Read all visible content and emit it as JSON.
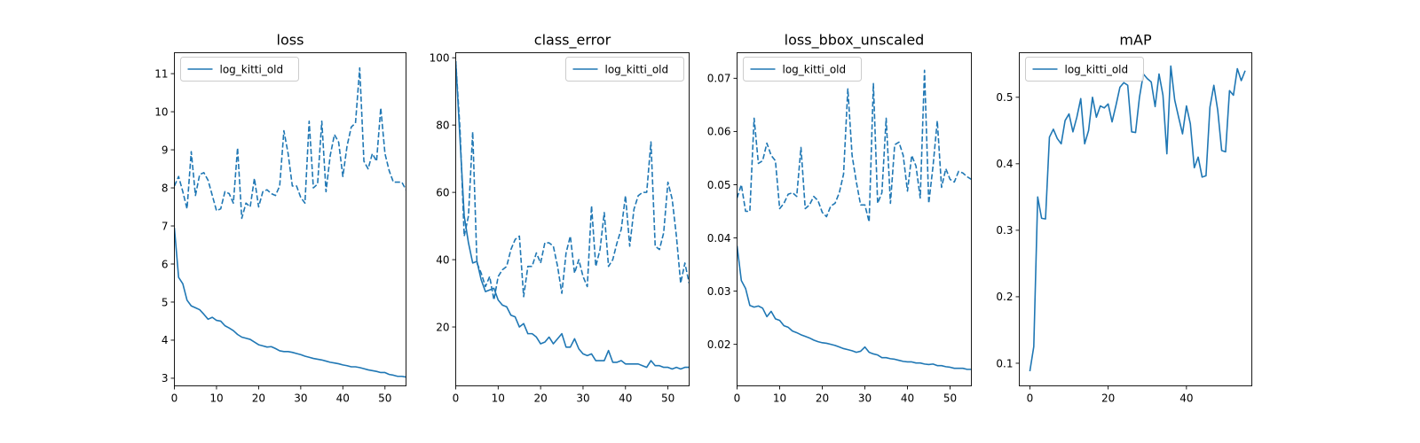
{
  "colors": {
    "series": "#1f77b4",
    "axis": "#000000",
    "legend_border": "#cccccc"
  },
  "chart_data": [
    {
      "type": "line",
      "title": "loss",
      "xlim": [
        0,
        55
      ],
      "ylim": [
        2.8,
        11.55
      ],
      "xticks": [
        0,
        10,
        20,
        30,
        40,
        50
      ],
      "yticks": [
        3,
        4,
        5,
        6,
        7,
        8,
        9,
        10,
        11
      ],
      "legend": {
        "entries": [
          "log_kitti_old"
        ],
        "position": "upper-left"
      },
      "series": [
        {
          "name": "log_kitti_old",
          "style": "solid",
          "x_start": 0,
          "x_step": 1,
          "values": [
            6.95,
            5.65,
            5.48,
            5.05,
            4.9,
            4.85,
            4.8,
            4.68,
            4.55,
            4.6,
            4.52,
            4.5,
            4.38,
            4.32,
            4.25,
            4.15,
            4.08,
            4.05,
            4.02,
            3.95,
            3.88,
            3.85,
            3.82,
            3.83,
            3.78,
            3.72,
            3.7,
            3.7,
            3.68,
            3.65,
            3.62,
            3.58,
            3.55,
            3.52,
            3.5,
            3.48,
            3.45,
            3.42,
            3.4,
            3.38,
            3.35,
            3.33,
            3.3,
            3.3,
            3.28,
            3.25,
            3.22,
            3.2,
            3.18,
            3.15,
            3.15,
            3.1,
            3.08,
            3.05,
            3.05,
            3.03
          ]
        },
        {
          "name": "",
          "style": "dashed",
          "x_start": 0,
          "x_step": 1,
          "values": [
            8.05,
            8.3,
            7.9,
            7.45,
            8.95,
            7.8,
            8.35,
            8.4,
            8.2,
            7.8,
            7.4,
            7.45,
            7.9,
            7.85,
            7.6,
            9.05,
            7.2,
            7.6,
            7.5,
            8.25,
            7.5,
            7.9,
            7.95,
            7.85,
            7.8,
            8.05,
            9.5,
            8.9,
            8.05,
            8.05,
            7.75,
            7.6,
            9.75,
            8.0,
            8.1,
            9.75,
            7.9,
            8.85,
            9.4,
            9.2,
            8.3,
            9.1,
            9.6,
            9.7,
            11.15,
            8.7,
            8.5,
            8.9,
            8.7,
            10.1,
            8.9,
            8.45,
            8.15,
            8.15,
            8.15,
            7.95
          ]
        }
      ]
    },
    {
      "type": "line",
      "title": "class_error",
      "xlim": [
        0,
        55
      ],
      "ylim": [
        2.5,
        101.5
      ],
      "xticks": [
        0,
        10,
        20,
        30,
        40,
        50
      ],
      "yticks": [
        20,
        40,
        60,
        80,
        100
      ],
      "legend": {
        "entries": [
          "log_kitti_old"
        ],
        "position": "upper-right"
      },
      "series": [
        {
          "name": "log_kitti_old",
          "style": "solid",
          "x_start": 0,
          "x_step": 1,
          "values": [
            99,
            76,
            53,
            45,
            39,
            39.5,
            34,
            30.5,
            31,
            31.5,
            28,
            26.5,
            26,
            23.5,
            23,
            20,
            21,
            18,
            18,
            17,
            15,
            15.5,
            17,
            15,
            16.5,
            18,
            14,
            14,
            16.5,
            13.5,
            12,
            11.5,
            12,
            10,
            10,
            10,
            13,
            9.5,
            9.5,
            10,
            9,
            9,
            9,
            9,
            8.5,
            8,
            10,
            8.5,
            8.5,
            8,
            8,
            7.5,
            8,
            7.5,
            8,
            8
          ]
        },
        {
          "name": "",
          "style": "dashed",
          "x_start": 0,
          "x_step": 1,
          "values": [
            99,
            79,
            47,
            53,
            78,
            39,
            36,
            32,
            35,
            28,
            35,
            37,
            38,
            43,
            46,
            47,
            29,
            38,
            38,
            42,
            39,
            45,
            45,
            44,
            38,
            30,
            42,
            47,
            36,
            40,
            35,
            32,
            56,
            38,
            43,
            54,
            38,
            40,
            45,
            49,
            59,
            44,
            55,
            59,
            60,
            60,
            75,
            44,
            43,
            48,
            63,
            58,
            47,
            33,
            39,
            33
          ]
        }
      ]
    },
    {
      "type": "line",
      "title": "loss_bbox_unscaled",
      "xlim": [
        0,
        55
      ],
      "ylim": [
        0.0122,
        0.0748
      ],
      "xticks": [
        0,
        10,
        20,
        30,
        40,
        50
      ],
      "yticks": [
        0.02,
        0.03,
        0.04,
        0.05,
        0.06,
        0.07
      ],
      "legend": {
        "entries": [
          "log_kitti_old"
        ],
        "position": "upper-left"
      },
      "series": [
        {
          "name": "log_kitti_old",
          "style": "solid",
          "x_start": 0,
          "x_step": 1,
          "values": [
            0.0385,
            0.032,
            0.0305,
            0.0273,
            0.027,
            0.0272,
            0.0268,
            0.0252,
            0.0262,
            0.0248,
            0.0245,
            0.0235,
            0.0232,
            0.0225,
            0.0222,
            0.0218,
            0.0215,
            0.0212,
            0.0208,
            0.0205,
            0.0203,
            0.0202,
            0.02,
            0.0198,
            0.0195,
            0.0192,
            0.019,
            0.0188,
            0.0185,
            0.0187,
            0.0195,
            0.0185,
            0.0182,
            0.018,
            0.0175,
            0.0175,
            0.0173,
            0.0172,
            0.017,
            0.0168,
            0.0167,
            0.0167,
            0.0165,
            0.0165,
            0.0163,
            0.0162,
            0.0163,
            0.016,
            0.016,
            0.0158,
            0.0157,
            0.0155,
            0.0155,
            0.0155,
            0.0153,
            0.0153
          ]
        },
        {
          "name": "",
          "style": "dashed",
          "x_start": 0,
          "x_step": 1,
          "values": [
            0.0475,
            0.05,
            0.045,
            0.045,
            0.0625,
            0.054,
            0.0545,
            0.0578,
            0.0555,
            0.0545,
            0.0455,
            0.0465,
            0.0482,
            0.0485,
            0.0478,
            0.057,
            0.0455,
            0.0462,
            0.0478,
            0.047,
            0.0448,
            0.044,
            0.046,
            0.0465,
            0.0485,
            0.052,
            0.068,
            0.0555,
            0.0505,
            0.0462,
            0.0462,
            0.043,
            0.069,
            0.0465,
            0.0485,
            0.0625,
            0.0465,
            0.0575,
            0.058,
            0.0555,
            0.0488,
            0.0555,
            0.0535,
            0.0475,
            0.0715,
            0.0465,
            0.0535,
            0.062,
            0.0495,
            0.053,
            0.051,
            0.0505,
            0.0525,
            0.0522,
            0.0515,
            0.051
          ]
        }
      ]
    },
    {
      "type": "line",
      "title": "mAP",
      "xlim": [
        -2.7,
        56.7
      ],
      "ylim": [
        0.066,
        0.567
      ],
      "xticks": [
        0,
        20,
        40
      ],
      "yticks": [
        0.1,
        0.2,
        0.3,
        0.4,
        0.5
      ],
      "legend": {
        "entries": [
          "log_kitti_old"
        ],
        "position": "upper-left"
      },
      "series": [
        {
          "name": "log_kitti_old",
          "style": "solid",
          "x_start": 0,
          "x_step": 1,
          "values": [
            0.088,
            0.125,
            0.35,
            0.318,
            0.317,
            0.44,
            0.452,
            0.438,
            0.43,
            0.465,
            0.475,
            0.448,
            0.47,
            0.498,
            0.43,
            0.45,
            0.5,
            0.47,
            0.487,
            0.484,
            0.49,
            0.463,
            0.488,
            0.515,
            0.522,
            0.518,
            0.448,
            0.447,
            0.5,
            0.535,
            0.528,
            0.523,
            0.486,
            0.535,
            0.503,
            0.415,
            0.547,
            0.496,
            0.47,
            0.445,
            0.487,
            0.46,
            0.394,
            0.41,
            0.38,
            0.382,
            0.485,
            0.518,
            0.48,
            0.42,
            0.418,
            0.51,
            0.503,
            0.543,
            0.525,
            0.54
          ]
        }
      ]
    }
  ]
}
